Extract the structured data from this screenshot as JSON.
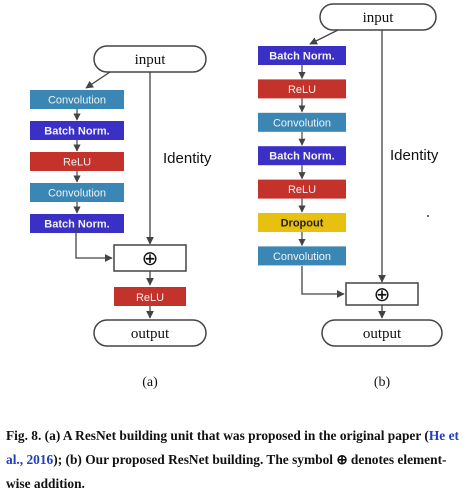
{
  "colors": {
    "convolution": "#3a87b5",
    "batch_norm": "#3b30c6",
    "relu": "#c4332b",
    "dropout": "#e8c010",
    "line": "#444444",
    "citation": "#1f3fbf"
  },
  "diagram_a": {
    "input": "input",
    "layers": [
      {
        "label": "Convolution",
        "kind": "convolution"
      },
      {
        "label": "Batch Norm.",
        "kind": "batch_norm"
      },
      {
        "label": "ReLU",
        "kind": "relu"
      },
      {
        "label": "Convolution",
        "kind": "convolution"
      },
      {
        "label": "Batch Norm.",
        "kind": "batch_norm"
      }
    ],
    "add_symbol": "⊕",
    "post_layer": {
      "label": "ReLU",
      "kind": "relu"
    },
    "output": "output",
    "identity": "Identity",
    "sublabel": "(a)"
  },
  "diagram_b": {
    "input": "input",
    "layers": [
      {
        "label": "Batch Norm.",
        "kind": "batch_norm"
      },
      {
        "label": "ReLU",
        "kind": "relu"
      },
      {
        "label": "Convolution",
        "kind": "convolution"
      },
      {
        "label": "Batch Norm.",
        "kind": "batch_norm"
      },
      {
        "label": "ReLU",
        "kind": "relu"
      },
      {
        "label": "Dropout",
        "kind": "dropout"
      },
      {
        "label": "Convolution",
        "kind": "convolution"
      }
    ],
    "add_symbol": "⊕",
    "output": "output",
    "identity": "Identity",
    "sublabel": "(b)"
  },
  "caption": {
    "part1": "Fig. 8.  (a) A ResNet building unit that was proposed in the original paper (",
    "citation": "He et al., 2016",
    "part2": "); (b) Our proposed ResNet building. The symbol ⊕ denotes element-wise addition."
  }
}
